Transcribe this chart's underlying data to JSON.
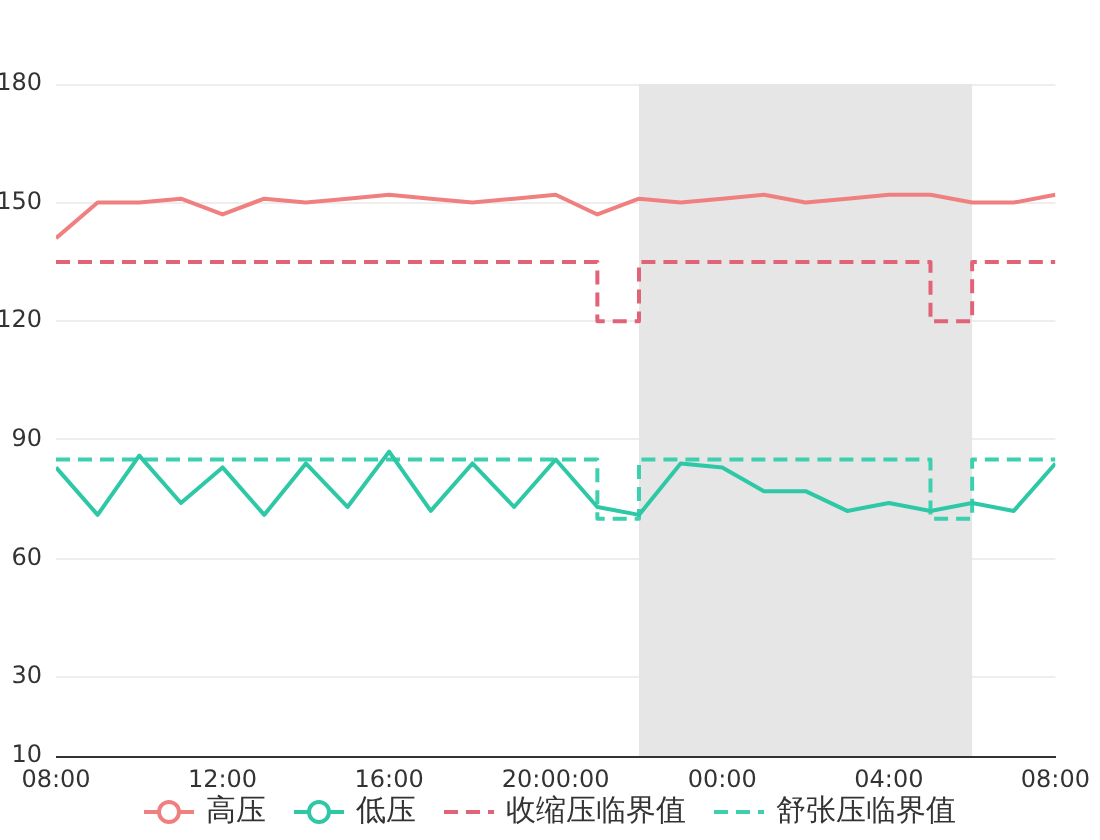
{
  "chart_data": {
    "type": "line",
    "x": [
      "2000-01-01T08:00",
      "2000-01-01T09:00",
      "2000-01-01T10:00",
      "2000-01-01T11:00",
      "2000-01-01T12:00",
      "2000-01-01T13:00",
      "2000-01-01T14:00",
      "2000-01-01T15:00",
      "2000-01-01T16:00",
      "2000-01-01T17:00",
      "2000-01-01T18:00",
      "2000-01-01T19:00",
      "2000-01-01T20:00",
      "2000-01-01T21:00",
      "2000-01-01T22:00",
      "2000-01-01T23:00",
      "2000-01-02T00:00",
      "2000-01-02T01:00",
      "2000-01-02T02:00",
      "2000-01-02T03:00",
      "2000-01-02T04:00",
      "2000-01-02T05:00",
      "2000-01-02T06:00",
      "2000-01-02T07:00",
      "2000-01-02T08:00"
    ],
    "xlim": [
      "2000-01-01T08:00",
      "2000-01-02T08:00"
    ],
    "xticks": [
      {
        "value": "2000-01-01T08:00",
        "label": "08:00"
      },
      {
        "value": "2000-01-01T12:00",
        "label": "12:00"
      },
      {
        "value": "2000-01-01T16:00",
        "label": "16:00"
      },
      {
        "value": "2000-01-01T20:00",
        "label": "20:00:00"
      },
      {
        "value": "2000-01-02T00:00",
        "label": "00:00"
      },
      {
        "value": "2000-01-02T04:00",
        "label": "04:00"
      },
      {
        "value": "2000-01-02T08:00",
        "label": "08:00"
      }
    ],
    "ylim": [
      10,
      180
    ],
    "yticks": [
      10,
      30,
      60,
      90,
      120,
      150,
      180
    ],
    "series": [
      {
        "name": "高压",
        "color": "#f08080",
        "values": [
          141,
          150,
          150,
          151,
          147,
          151,
          150,
          151,
          152,
          151,
          150,
          151,
          152,
          147,
          151,
          150,
          151,
          152,
          150,
          151,
          152,
          152,
          150,
          150,
          152
        ]
      },
      {
        "name": "低压",
        "color": "#2ec8a6",
        "values": [
          83,
          71,
          86,
          74,
          83,
          71,
          84,
          73,
          87,
          72,
          84,
          73,
          85,
          73,
          71,
          84,
          83,
          77,
          77,
          72,
          74,
          72,
          74,
          72,
          84
        ]
      },
      {
        "name": "收缩压临界值",
        "type": "step",
        "line_style": "dashed",
        "color": "#e06377",
        "values": [
          135,
          135,
          135,
          135,
          135,
          135,
          135,
          135,
          135,
          135,
          135,
          135,
          135,
          120,
          135,
          135,
          135,
          135,
          135,
          135,
          135,
          120,
          135,
          135,
          135
        ]
      },
      {
        "name": "舒张压临界值",
        "type": "step",
        "line_style": "dashed",
        "color": "#3dd0b0",
        "values": [
          85,
          85,
          85,
          85,
          85,
          85,
          85,
          85,
          85,
          85,
          85,
          85,
          85,
          70,
          85,
          85,
          85,
          85,
          85,
          85,
          85,
          70,
          85,
          85,
          85
        ]
      }
    ],
    "bands": [
      {
        "axis": "x",
        "from": "2000-01-01T22:00",
        "to": "2000-01-02T06:00",
        "color": "#e6e6e6"
      }
    ],
    "grid": "y",
    "legend": "bottom"
  }
}
